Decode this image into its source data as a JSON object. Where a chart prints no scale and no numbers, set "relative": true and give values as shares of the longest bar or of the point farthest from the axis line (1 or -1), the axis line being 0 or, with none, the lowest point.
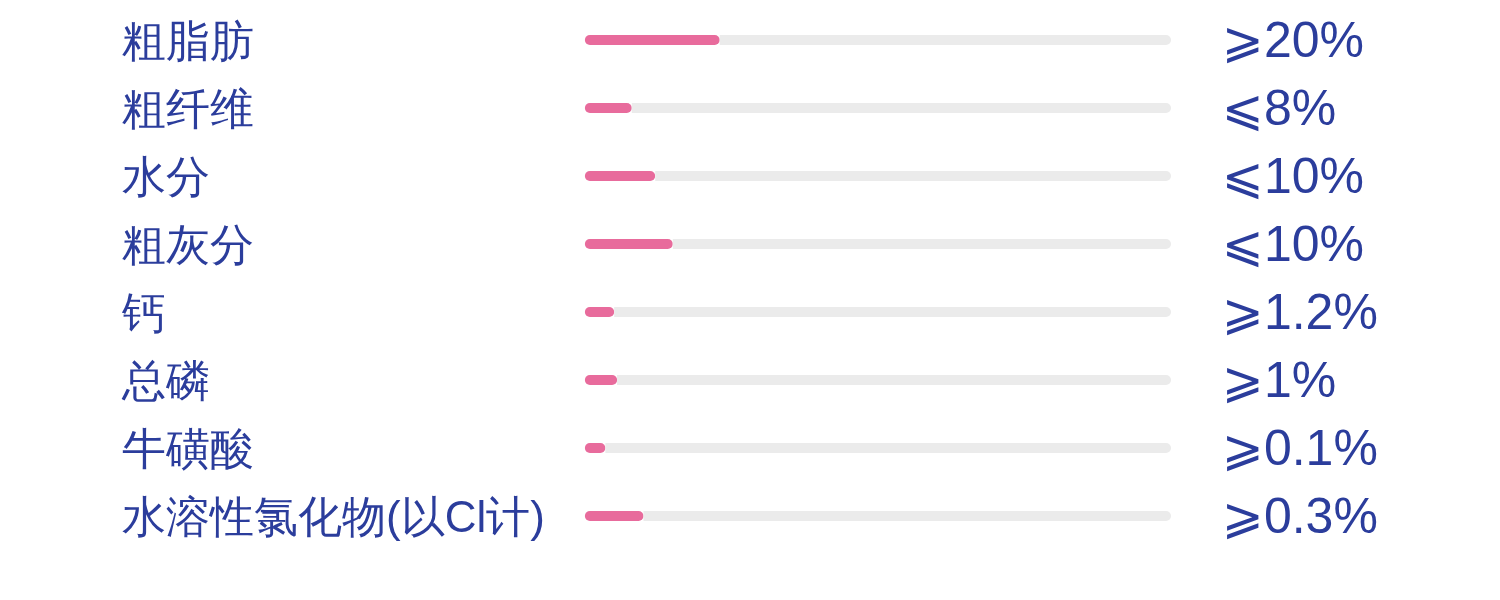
{
  "chart_data": {
    "type": "bar",
    "orientation": "horizontal",
    "stacked": true,
    "relative": true,
    "tick_labels": "y",
    "categories": [
      "粗脂肪",
      "粗纤维",
      "水分",
      "粗灰分",
      "钙",
      "总磷",
      "牛磺酸",
      "水溶性氯化物(以Cl计)"
    ],
    "series": [
      {
        "color": "#e86b9c",
        "values": [
          0.23,
          0.08,
          0.12,
          0.15,
          0.05,
          0.055,
          0.035,
          0.1
        ]
      },
      {
        "color": "#ebebeb",
        "values": [
          0.77,
          0.92,
          0.88,
          0.85,
          0.95,
          0.945,
          0.965,
          0.9
        ]
      }
    ],
    "annotations": [
      "⩾20%",
      "⩽8%",
      "⩽10%",
      "⩽10%",
      "⩾1.2%",
      "⩾1%",
      "⩾0.1%",
      "⩾0.3%"
    ]
  }
}
